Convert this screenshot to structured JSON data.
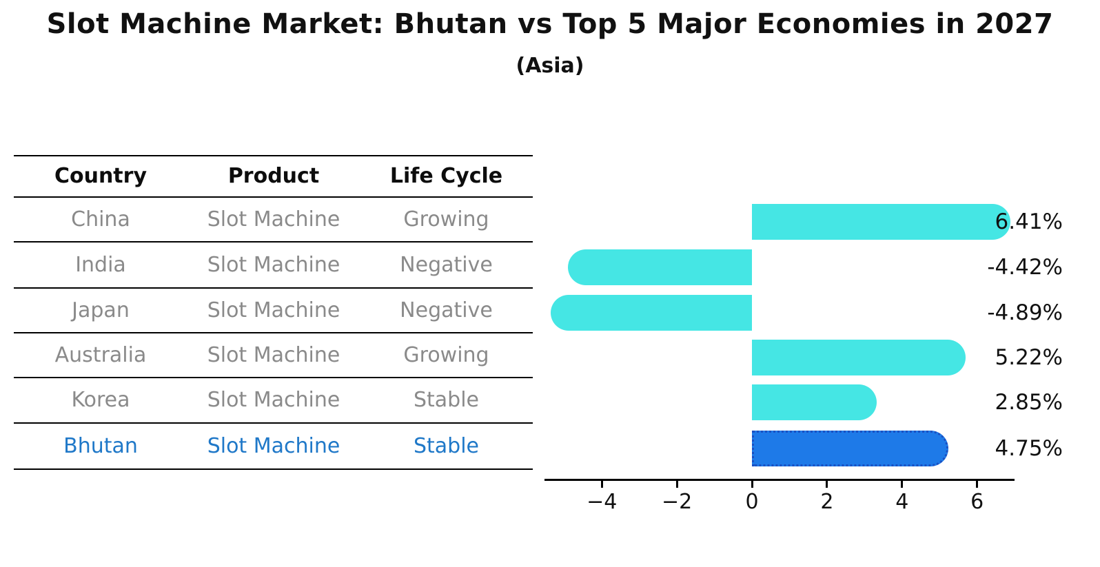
{
  "title": "Slot Machine Market: Bhutan vs Top 5 Major Economies in 2027",
  "subtitle": "(Asia)",
  "table": {
    "headers": [
      "Country",
      "Product",
      "Life Cycle"
    ],
    "rows": [
      {
        "country": "China",
        "product": "Slot Machine",
        "life_cycle": "Growing",
        "value": 6.41,
        "label": "6.41%",
        "highlight": false
      },
      {
        "country": "India",
        "product": "Slot Machine",
        "life_cycle": "Negative",
        "value": -4.42,
        "label": "-4.42%",
        "highlight": false
      },
      {
        "country": "Japan",
        "product": "Slot Machine",
        "life_cycle": "Negative",
        "value": -4.89,
        "label": "-4.89%",
        "highlight": false
      },
      {
        "country": "Australia",
        "product": "Slot Machine",
        "life_cycle": "Growing",
        "value": 5.22,
        "label": "5.22%",
        "highlight": false
      },
      {
        "country": "Korea",
        "product": "Slot Machine",
        "life_cycle": "Stable",
        "value": 2.85,
        "label": "2.85%",
        "highlight": false
      },
      {
        "country": "Bhutan",
        "product": "Slot Machine",
        "life_cycle": "Stable",
        "value": 4.75,
        "label": "4.75%",
        "highlight": true
      }
    ]
  },
  "chart_data": {
    "type": "bar",
    "orientation": "horizontal",
    "title": "Slot Machine Market: Bhutan vs Top 5 Major Economies in 2027",
    "subtitle": "(Asia)",
    "categories": [
      "China",
      "India",
      "Japan",
      "Australia",
      "Korea",
      "Bhutan"
    ],
    "values": [
      6.41,
      -4.42,
      -4.89,
      5.22,
      2.85,
      4.75
    ],
    "value_labels": [
      "6.41%",
      "-4.42%",
      "-4.89%",
      "5.22%",
      "2.85%",
      "4.75%"
    ],
    "xlabel": "",
    "ylabel": "",
    "xlim": [
      -5.5,
      7.0
    ],
    "x_ticks": [
      -4,
      -2,
      0,
      2,
      4,
      6
    ],
    "x_tick_labels": [
      "−4",
      "−2",
      "0",
      "2",
      "4",
      "6"
    ],
    "grid": false,
    "legend": false,
    "highlight_category": "Bhutan",
    "colors": {
      "bar": "#45e6e4",
      "highlight_bar": "#1e7ae8",
      "highlight_border": "#1a50c2",
      "highlight_text": "#1f78c8",
      "table_text": "#8a8a8a",
      "axis": "#000000"
    }
  }
}
